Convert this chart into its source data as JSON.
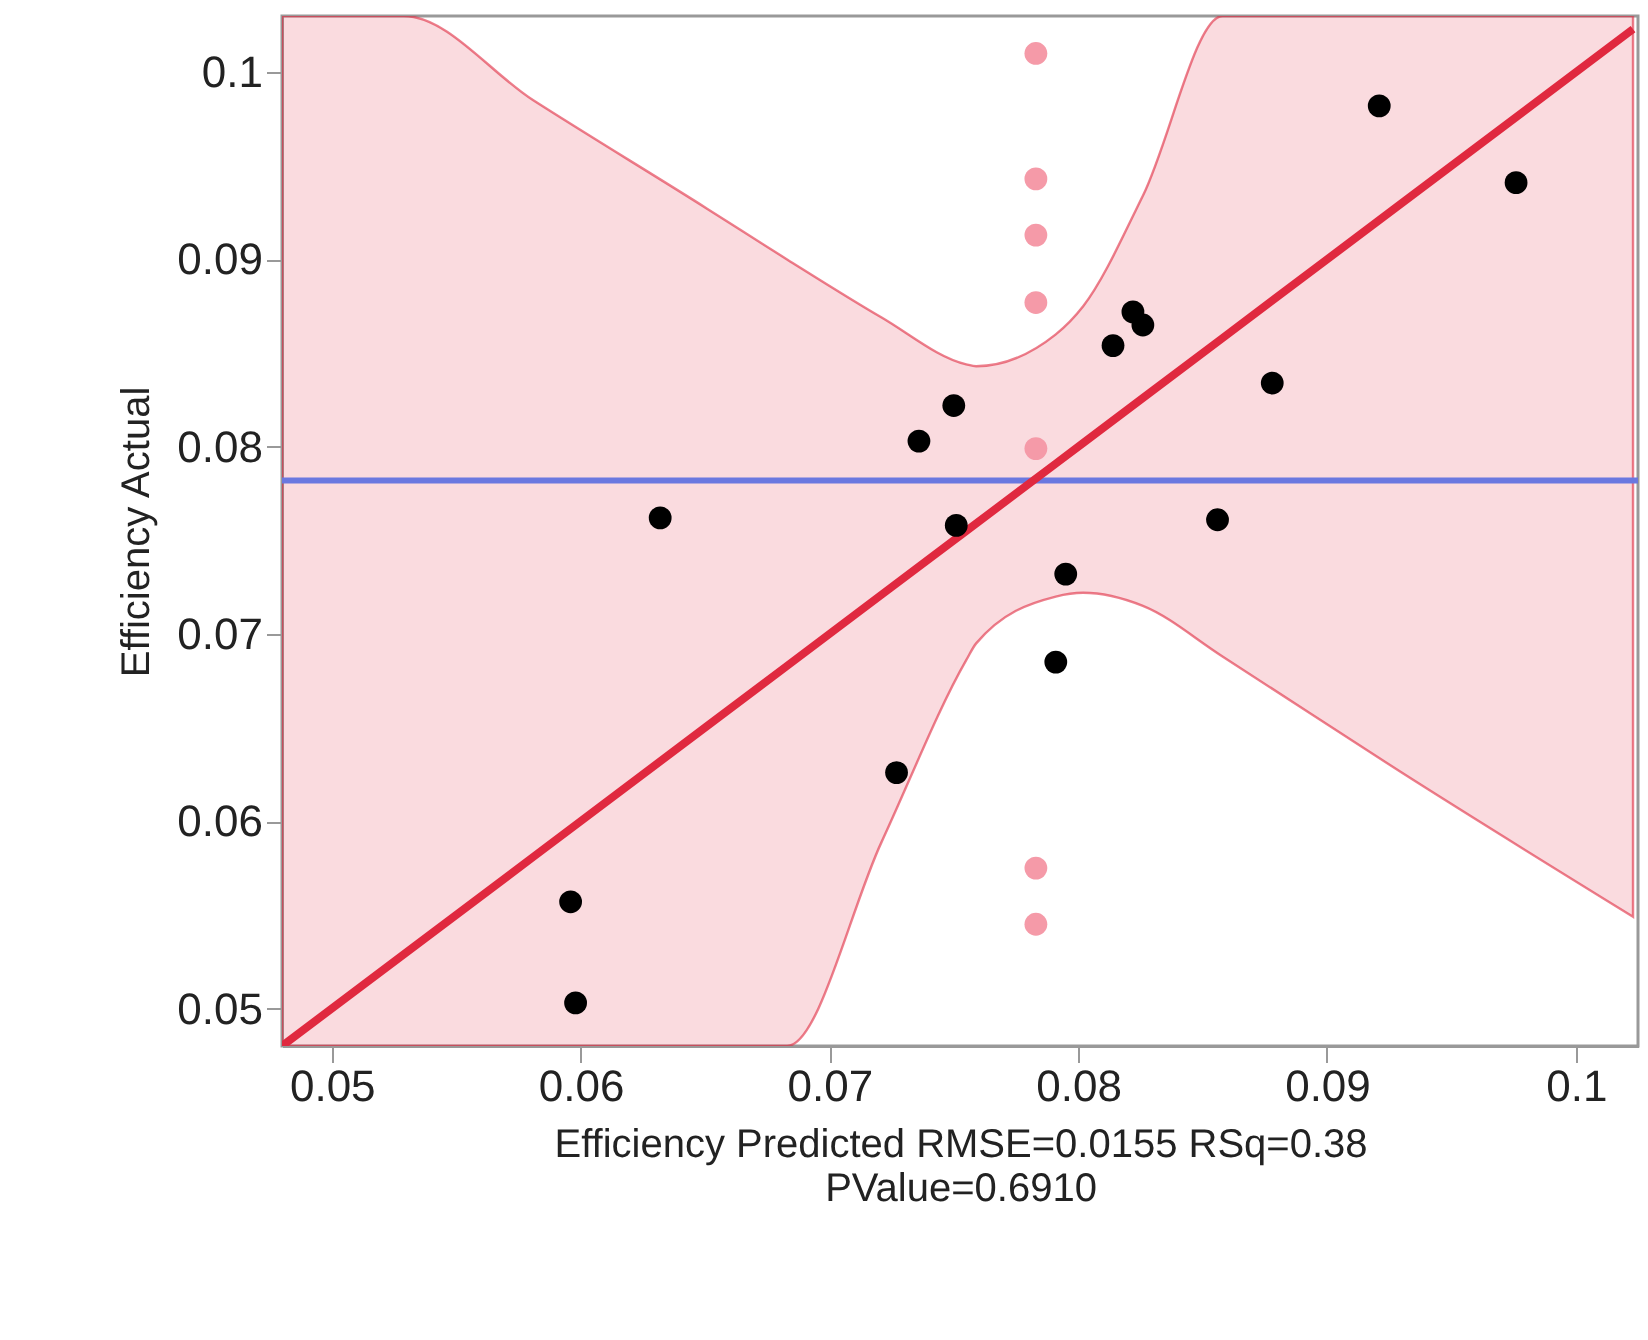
{
  "chart_data": {
    "type": "scatter",
    "xlabel": "Efficiency Predicted RMSE=0.0155 RSq=0.38\nPValue=0.6910",
    "ylabel": "Efficiency Actual",
    "xlim": [
      0.048,
      0.1025
    ],
    "ylim": [
      0.048,
      0.103
    ],
    "xticks": [
      0.05,
      0.06,
      0.07,
      0.08,
      0.09,
      0.1
    ],
    "yticks": [
      0.05,
      0.06,
      0.07,
      0.08,
      0.09,
      0.1
    ],
    "grid": false,
    "legend": false,
    "marker": "circle",
    "series": [
      {
        "type": "line",
        "color": "#e0293f",
        "marker": "none",
        "line_style": "solid",
        "x": [
          0.048,
          0.0529,
          0.0581,
          0.0651,
          0.0683,
          0.0721,
          0.0755,
          0.0759,
          0.0791,
          0.0802,
          0.0826,
          0.0858,
          0.093,
          0.1023
        ],
        "values": [
          0.048,
          0.0529,
          0.0581,
          0.0651,
          0.0683,
          0.0721,
          0.0755,
          0.0759,
          0.0791,
          0.0802,
          0.0826,
          0.0858,
          0.093,
          0.1023
        ],
        "upper": [
          0.103,
          0.103,
          0.0985,
          0.0927,
          0.09,
          0.0869,
          0.0844,
          0.0843,
          0.086,
          0.0875,
          0.0934,
          0.103,
          0.103,
          0.103
        ],
        "lower": [
          0.048,
          0.048,
          0.048,
          0.048,
          0.048,
          0.0589,
          0.0686,
          0.0695,
          0.072,
          0.0722,
          0.0715,
          0.0688,
          0.0626,
          0.0549
        ]
      },
      {
        "type": "scatter",
        "color": "#f59aa8",
        "x": [
          0.0783,
          0.0783,
          0.0783,
          0.0783,
          0.0783,
          0.0783,
          0.0783
        ],
        "values": [
          0.101,
          0.0943,
          0.0913,
          0.0877,
          0.0799,
          0.0575,
          0.0545
        ]
      },
      {
        "type": "scatter",
        "color": "#000000",
        "x": [
          0.0921,
          0.0976,
          0.0822,
          0.0826,
          0.0814,
          0.0878,
          0.075,
          0.0736,
          0.0632,
          0.0751,
          0.0856,
          0.0795,
          0.0791,
          0.0727,
          0.0596,
          0.0598
        ],
        "values": [
          0.0982,
          0.0941,
          0.0872,
          0.0865,
          0.0854,
          0.0834,
          0.0822,
          0.0803,
          0.0762,
          0.0758,
          0.0761,
          0.0732,
          0.0685,
          0.0626,
          0.0557,
          0.0503
        ]
      }
    ],
    "ref_lines": [
      {
        "axis": "y",
        "value": 0.0782,
        "color": "#6a78e0"
      }
    ]
  }
}
